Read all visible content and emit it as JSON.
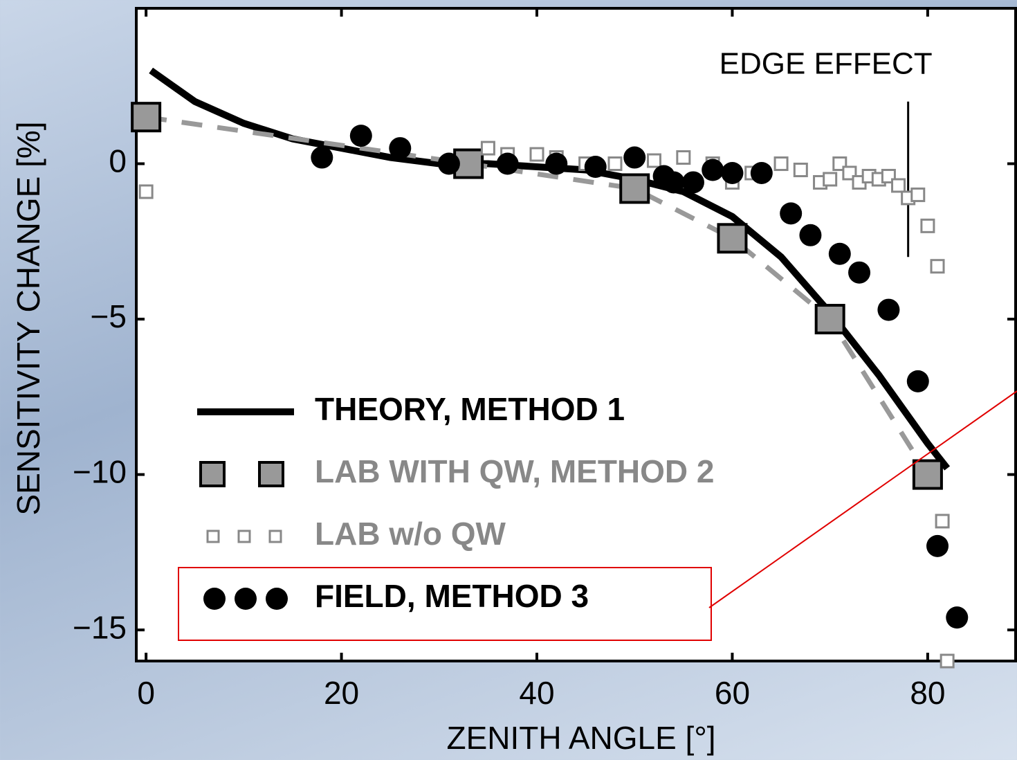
{
  "chart_data": {
    "type": "scatter",
    "x_label": "ZENITH ANGLE [°]",
    "y_label": "SENSITIVITY CHANGE [%]",
    "annotation": "EDGE EFFECT",
    "annotation_x": 78,
    "annotation_y": [
      2,
      -3
    ],
    "xlim": [
      -1,
      89
    ],
    "ylim": [
      -16,
      5
    ],
    "xticks": [
      0,
      20,
      40,
      60,
      80
    ],
    "yticks": [
      0,
      {
        "value": -5,
        "label": "−5"
      },
      {
        "value": -10,
        "label": "−10"
      },
      {
        "value": -15,
        "label": "−15"
      }
    ],
    "grid": false,
    "legend": "lower left",
    "series": [
      {
        "name": "THEORY, METHOD 1",
        "color": "#000000",
        "style": "line",
        "x": [
          0.5,
          5,
          10,
          15,
          20,
          25,
          30,
          35,
          40,
          45,
          50,
          55,
          60,
          65,
          70,
          75,
          80,
          82
        ],
        "values": [
          3,
          2,
          1.3,
          0.8,
          0.5,
          0.2,
          0,
          0,
          -0.1,
          -0.2,
          -0.5,
          -0.9,
          -1.7,
          -3,
          -4.8,
          -6.8,
          -9,
          -9.8
        ]
      },
      {
        "name": "LAB WITH QW, METHOD 2",
        "color": "#999999",
        "style": "dashed-square",
        "x": [
          0,
          33,
          50,
          60,
          70,
          80
        ],
        "values": [
          1.5,
          0,
          -0.8,
          -2.4,
          -5,
          -10
        ]
      },
      {
        "name": "LAB w/o QW",
        "color": "#888888",
        "style": "small-square",
        "x": [
          0,
          35,
          37,
          40,
          42,
          45,
          48,
          52,
          55,
          58,
          60,
          62,
          65,
          67,
          69,
          70,
          71,
          72,
          73,
          74,
          75,
          76,
          77,
          78,
          79,
          80,
          81,
          81.5,
          82
        ],
        "values": [
          -0.9,
          0.5,
          0.3,
          0.3,
          0.2,
          0,
          0,
          0.1,
          0.2,
          0,
          -0.6,
          -0.3,
          0,
          -0.2,
          -0.6,
          -0.5,
          0,
          -0.3,
          -0.6,
          -0.4,
          -0.5,
          -0.4,
          -0.7,
          -1.1,
          -1,
          -2,
          -3.3,
          -11.5,
          -16
        ]
      },
      {
        "name": "FIELD, METHOD 3",
        "color": "#000000",
        "style": "circle",
        "x": [
          18,
          22,
          26,
          31,
          37,
          42,
          46,
          50,
          53,
          54,
          56,
          58,
          60,
          63,
          66,
          68,
          71,
          73,
          76,
          79,
          81,
          83
        ],
        "values": [
          0.2,
          0.9,
          0.5,
          0,
          0,
          0,
          -0.1,
          0.2,
          -0.4,
          -0.6,
          -0.6,
          -0.2,
          -0.3,
          -0.3,
          -1.6,
          -2.3,
          -2.9,
          -3.5,
          -4.7,
          -7,
          -12.3,
          -14.6
        ]
      }
    ]
  }
}
